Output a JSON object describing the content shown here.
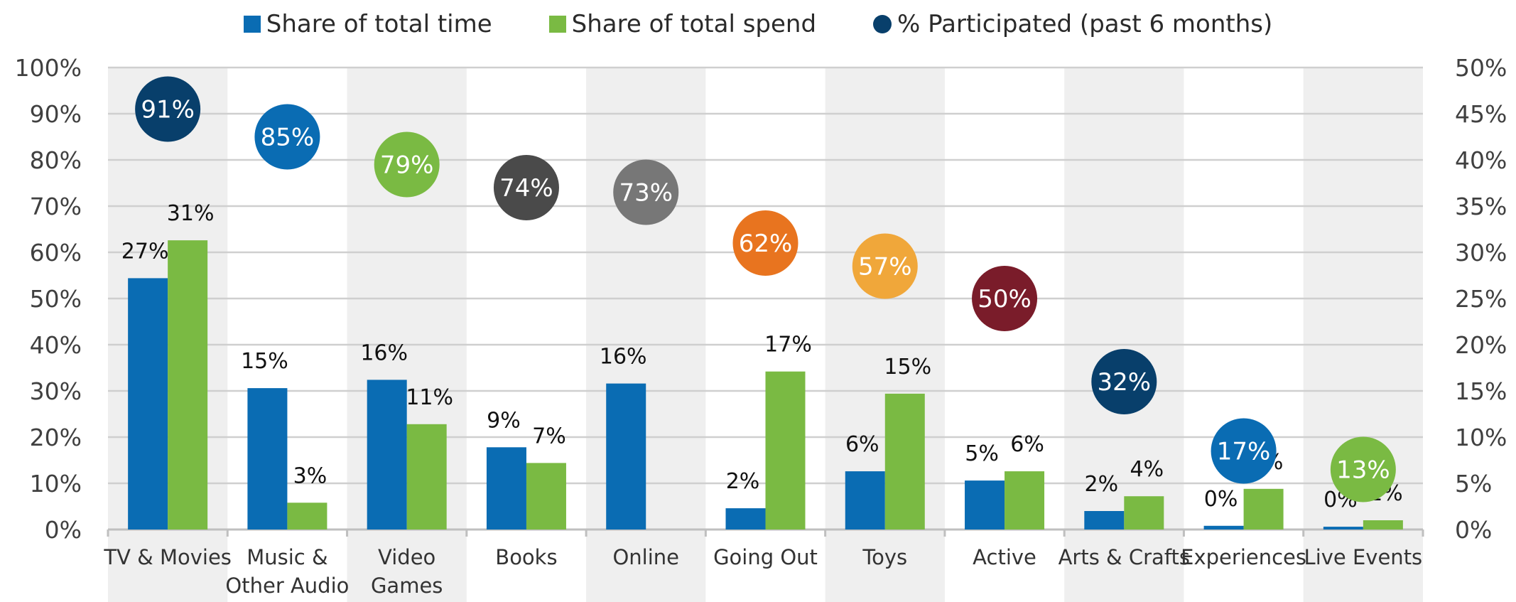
{
  "chart_data": {
    "type": "bar",
    "categories": [
      {
        "label_lines": [
          "TV & Movies"
        ]
      },
      {
        "label_lines": [
          "Music &",
          "Other Audio"
        ]
      },
      {
        "label_lines": [
          "Video",
          "Games"
        ]
      },
      {
        "label_lines": [
          "Books"
        ]
      },
      {
        "label_lines": [
          "Online"
        ]
      },
      {
        "label_lines": [
          "Going Out"
        ]
      },
      {
        "label_lines": [
          "Toys"
        ]
      },
      {
        "label_lines": [
          "Active"
        ]
      },
      {
        "label_lines": [
          "Arts & Crafts"
        ]
      },
      {
        "label_lines": [
          "Experiences"
        ]
      },
      {
        "label_lines": [
          "Live Events"
        ]
      }
    ],
    "series": [
      {
        "name": "Share of total time",
        "axis": "right",
        "color": "#0a6cb3",
        "values": [
          27.2,
          15.3,
          16.2,
          8.9,
          15.8,
          2.3,
          6.3,
          5.3,
          2.0,
          0.4,
          0.3
        ],
        "labels": [
          "27%",
          "15%",
          "16%",
          "9%",
          "16%",
          "2%",
          "6%",
          "5%",
          "2%",
          "0%",
          "0%"
        ]
      },
      {
        "name": "Share of total spend",
        "axis": "right",
        "color": "#7aba43",
        "values": [
          31.3,
          2.9,
          11.4,
          7.2,
          0,
          17.1,
          14.7,
          6.3,
          3.6,
          4.4,
          1.0
        ],
        "labels": [
          "31%",
          "3%",
          "11%",
          "7%",
          "",
          "17%",
          "15%",
          "6%",
          "4%",
          "4%",
          "1%"
        ]
      },
      {
        "name": "% Participated (past 6 months)",
        "axis": "left",
        "type": "scatter",
        "color": "#083f6b",
        "values": [
          91,
          85,
          79,
          74,
          73,
          62,
          57,
          50,
          32,
          17,
          13
        ],
        "labels": [
          "91%",
          "85%",
          "79%",
          "74%",
          "73%",
          "62%",
          "57%",
          "50%",
          "32%",
          "17%",
          "13%"
        ],
        "point_colors": [
          "#083f6b",
          "#0a6cb3",
          "#7aba43",
          "#4a4a4a",
          "#777777",
          "#e8741f",
          "#f0a73a",
          "#7a1c2a",
          "#083f6b",
          "#0a6cb3",
          "#7aba43"
        ]
      }
    ],
    "y_left": {
      "ylim": [
        0,
        100
      ],
      "ticks": [
        "0%",
        "10%",
        "20%",
        "30%",
        "40%",
        "50%",
        "60%",
        "70%",
        "80%",
        "90%",
        "100%"
      ]
    },
    "y_right": {
      "ylim": [
        0,
        50
      ],
      "ticks": [
        "0%",
        "5%",
        "10%",
        "15%",
        "20%",
        "25%",
        "30%",
        "35%",
        "40%",
        "45%",
        "50%"
      ]
    },
    "grid": true,
    "legend_position": "top-center",
    "title": "",
    "xlabel": "",
    "ylabel": ""
  }
}
